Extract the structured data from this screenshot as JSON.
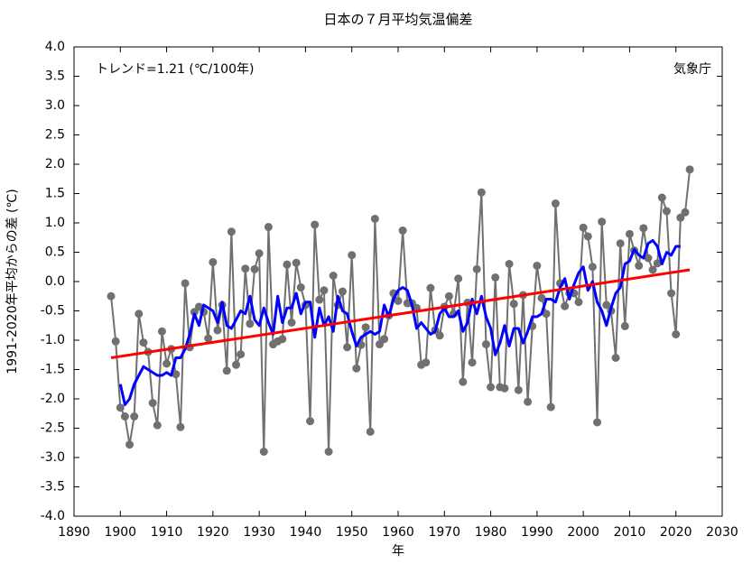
{
  "chart_data": {
    "type": "line",
    "title": "日本の７月平均気温偏差",
    "xlabel": "年",
    "ylabel": "1991-2020年平均からの差 (℃)",
    "annotations": [
      "トレンド=1.21 (℃/100年)",
      "気象庁"
    ],
    "xlim": [
      1890,
      2030
    ],
    "xticks": [
      1890,
      1900,
      1910,
      1920,
      1930,
      1940,
      1950,
      1960,
      1970,
      1980,
      1990,
      2000,
      2010,
      2020,
      2030
    ],
    "ylim": [
      -4.0,
      4.0
    ],
    "yticks": [
      {
        "value": 4.0,
        "label": "4.0"
      },
      {
        "value": 3.5,
        "label": "3.5"
      },
      {
        "value": 3.0,
        "label": "3.0"
      },
      {
        "value": 2.5,
        "label": "2.5"
      },
      {
        "value": 2.0,
        "label": "2.0"
      },
      {
        "value": 1.5,
        "label": "1.5"
      },
      {
        "value": 1.0,
        "label": "1.0"
      },
      {
        "value": 0.5,
        "label": "0.5"
      },
      {
        "value": 0.0,
        "label": "0.0"
      },
      {
        "value": -0.5,
        "label": "-0.5"
      },
      {
        "value": -1.0,
        "label": "-1.0"
      },
      {
        "value": -1.5,
        "label": "-1.5"
      },
      {
        "value": -2.0,
        "label": "-2.0"
      },
      {
        "value": -2.5,
        "label": "-2.5"
      },
      {
        "value": -3.0,
        "label": "-3.0"
      },
      {
        "value": -3.5,
        "label": "-3.5"
      },
      {
        "value": -4.0,
        "label": "-4.0"
      }
    ],
    "grid": false,
    "series": [
      {
        "color": "#707070",
        "markers": true,
        "x": [
          1898,
          1899,
          1900,
          1901,
          1902,
          1903,
          1904,
          1905,
          1906,
          1907,
          1908,
          1909,
          1910,
          1911,
          1912,
          1913,
          1914,
          1915,
          1916,
          1917,
          1918,
          1919,
          1920,
          1921,
          1922,
          1923,
          1924,
          1925,
          1926,
          1927,
          1928,
          1929,
          1930,
          1931,
          1932,
          1933,
          1934,
          1935,
          1936,
          1937,
          1938,
          1939,
          1940,
          1941,
          1942,
          1943,
          1944,
          1945,
          1946,
          1947,
          1948,
          1949,
          1950,
          1951,
          1952,
          1953,
          1954,
          1955,
          1956,
          1957,
          1958,
          1959,
          1960,
          1961,
          1962,
          1963,
          1964,
          1965,
          1966,
          1967,
          1968,
          1969,
          1970,
          1971,
          1972,
          1973,
          1974,
          1975,
          1976,
          1977,
          1978,
          1979,
          1980,
          1981,
          1982,
          1983,
          1984,
          1985,
          1986,
          1987,
          1988,
          1989,
          1990,
          1991,
          1992,
          1993,
          1994,
          1995,
          1996,
          1997,
          1998,
          1999,
          2000,
          2001,
          2002,
          2003,
          2004,
          2005,
          2006,
          2007,
          2008,
          2009,
          2010,
          2011,
          2012,
          2013,
          2014,
          2015,
          2016,
          2017,
          2018,
          2019,
          2020,
          2021,
          2022,
          2023
        ],
        "values": [
          -0.25,
          -1.02,
          -2.15,
          -2.3,
          -2.78,
          -2.3,
          -0.55,
          -1.04,
          -1.2,
          -2.07,
          -2.45,
          -0.85,
          -1.4,
          -1.15,
          -1.58,
          -2.48,
          -0.03,
          -1.12,
          -0.52,
          -0.43,
          -0.52,
          -0.97,
          0.33,
          -0.83,
          -0.4,
          -1.52,
          0.85,
          -1.42,
          -1.24,
          0.22,
          -0.72,
          0.21,
          0.48,
          -2.9,
          0.93,
          -1.07,
          -1.02,
          -0.98,
          0.29,
          -0.7,
          0.32,
          -0.1,
          -0.4,
          -2.38,
          0.97,
          -0.31,
          -0.15,
          -2.9,
          0.1,
          -0.4,
          -0.17,
          -1.12,
          0.45,
          -1.48,
          -1.08,
          -0.78,
          -2.56,
          1.07,
          -1.07,
          -0.98,
          -0.58,
          -0.2,
          -0.33,
          0.87,
          -0.37,
          -0.37,
          -0.45,
          -1.42,
          -1.38,
          -0.11,
          -0.83,
          -0.92,
          -0.43,
          -0.25,
          -0.55,
          0.05,
          -1.71,
          -0.36,
          -1.38,
          0.21,
          1.52,
          -1.07,
          -1.8,
          0.07,
          -1.8,
          -1.82,
          0.3,
          -0.38,
          -1.85,
          -0.23,
          -2.05,
          -0.76,
          0.27,
          -0.28,
          -0.55,
          -2.14,
          1.33,
          -0.03,
          -0.42,
          -0.2,
          -0.2,
          -0.35,
          0.92,
          0.77,
          0.25,
          -2.4,
          1.02,
          -0.4,
          -0.5,
          -1.3,
          0.65,
          -0.76,
          0.81,
          0.53,
          0.27,
          0.91,
          0.4,
          0.2,
          0.31,
          1.43,
          1.2,
          -0.2,
          -0.9,
          1.09,
          1.18,
          1.91
        ]
      },
      {
        "color": "#0000ff",
        "markers": false,
        "x": [
          1900,
          1901,
          1902,
          1903,
          1904,
          1905,
          1906,
          1907,
          1908,
          1909,
          1910,
          1911,
          1912,
          1913,
          1914,
          1915,
          1916,
          1917,
          1918,
          1919,
          1920,
          1921,
          1922,
          1923,
          1924,
          1925,
          1926,
          1927,
          1928,
          1929,
          1930,
          1931,
          1932,
          1933,
          1934,
          1935,
          1936,
          1937,
          1938,
          1939,
          1940,
          1941,
          1942,
          1943,
          1944,
          1945,
          1946,
          1947,
          1948,
          1949,
          1950,
          1951,
          1952,
          1953,
          1954,
          1955,
          1956,
          1957,
          1958,
          1959,
          1960,
          1961,
          1962,
          1963,
          1964,
          1965,
          1966,
          1967,
          1968,
          1969,
          1970,
          1971,
          1972,
          1973,
          1974,
          1975,
          1976,
          1977,
          1978,
          1979,
          1980,
          1981,
          1982,
          1983,
          1984,
          1985,
          1986,
          1987,
          1988,
          1989,
          1990,
          1991,
          1992,
          1993,
          1994,
          1995,
          1996,
          1997,
          1998,
          1999,
          2000,
          2001,
          2002,
          2003,
          2004,
          2005,
          2006,
          2007,
          2008,
          2009,
          2010,
          2011,
          2012,
          2013,
          2014,
          2015,
          2016,
          2017,
          2018,
          2019,
          2020,
          2021
        ],
        "values": [
          -1.75,
          -2.1,
          -2.0,
          -1.75,
          -1.6,
          -1.45,
          -1.5,
          -1.55,
          -1.6,
          -1.6,
          -1.55,
          -1.6,
          -1.3,
          -1.3,
          -1.15,
          -0.9,
          -0.55,
          -0.75,
          -0.4,
          -0.45,
          -0.5,
          -0.7,
          -0.35,
          -0.75,
          -0.8,
          -0.65,
          -0.5,
          -0.55,
          -0.25,
          -0.65,
          -0.75,
          -0.45,
          -0.7,
          -0.9,
          -0.25,
          -0.7,
          -0.45,
          -0.45,
          -0.2,
          -0.55,
          -0.35,
          -0.35,
          -0.95,
          -0.45,
          -0.75,
          -0.6,
          -0.85,
          -0.25,
          -0.5,
          -0.55,
          -0.85,
          -1.1,
          -0.95,
          -0.9,
          -0.85,
          -0.9,
          -0.85,
          -0.4,
          -0.6,
          -0.3,
          -0.15,
          -0.1,
          -0.15,
          -0.4,
          -0.8,
          -0.7,
          -0.8,
          -0.9,
          -0.85,
          -0.55,
          -0.45,
          -0.6,
          -0.6,
          -0.5,
          -0.85,
          -0.7,
          -0.3,
          -0.55,
          -0.25,
          -0.6,
          -0.8,
          -1.25,
          -1.05,
          -0.75,
          -1.1,
          -0.8,
          -0.8,
          -1.05,
          -0.85,
          -0.6,
          -0.6,
          -0.55,
          -0.3,
          -0.3,
          -0.35,
          -0.1,
          0.05,
          -0.3,
          -0.05,
          0.15,
          0.25,
          -0.15,
          0.0,
          -0.35,
          -0.5,
          -0.75,
          -0.45,
          -0.2,
          -0.1,
          0.3,
          0.35,
          0.55,
          0.45,
          0.4,
          0.65,
          0.7,
          0.6,
          0.3,
          0.5,
          0.45,
          0.6,
          0.6
        ]
      },
      {
        "color": "#ff0000",
        "markers": false,
        "x": [
          1898,
          2023
        ],
        "values": [
          -1.3,
          0.2
        ]
      }
    ]
  }
}
